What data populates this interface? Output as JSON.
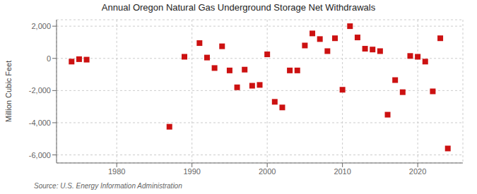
{
  "chart_data": {
    "type": "scatter",
    "title": "Annual Oregon Natural Gas Underground Storage Net Withdrawals",
    "ylabel": "Million Cubic Feet",
    "annotations": [
      "Source: U.S. Energy Information Administration"
    ],
    "x": [
      1974,
      1975,
      1976,
      1987,
      1989,
      1991,
      1992,
      1993,
      1994,
      1995,
      1996,
      1997,
      1998,
      1999,
      2000,
      2001,
      2002,
      2003,
      2004,
      2005,
      2006,
      2007,
      2008,
      2009,
      2010,
      2011,
      2012,
      2013,
      2014,
      2015,
      2016,
      2017,
      2018,
      2019,
      2020,
      2021,
      2022,
      2023,
      2024
    ],
    "values": [
      -200,
      -50,
      -80,
      -4250,
      100,
      950,
      50,
      -600,
      750,
      -750,
      -1800,
      -700,
      -1700,
      -1650,
      250,
      -2700,
      -3050,
      -750,
      -750,
      800,
      1550,
      1200,
      450,
      1250,
      -1950,
      2000,
      1300,
      600,
      550,
      450,
      -3500,
      -1350,
      -2100,
      150,
      100,
      -200,
      -2050,
      1250,
      -5600
    ],
    "color": "#cc1111",
    "marker": "square",
    "xlim": [
      1972,
      2026
    ],
    "xticks": [
      1980,
      1990,
      2000,
      2010,
      2020
    ],
    "ylim": [
      -6500,
      2400
    ],
    "yticks": [
      {
        "value": -6000,
        "label": "-6,000"
      },
      {
        "value": -4000,
        "label": "-4,000"
      },
      {
        "value": -2000,
        "label": "-2,000"
      },
      0,
      {
        "value": 2000,
        "label": "2,000"
      }
    ],
    "grid": true
  }
}
